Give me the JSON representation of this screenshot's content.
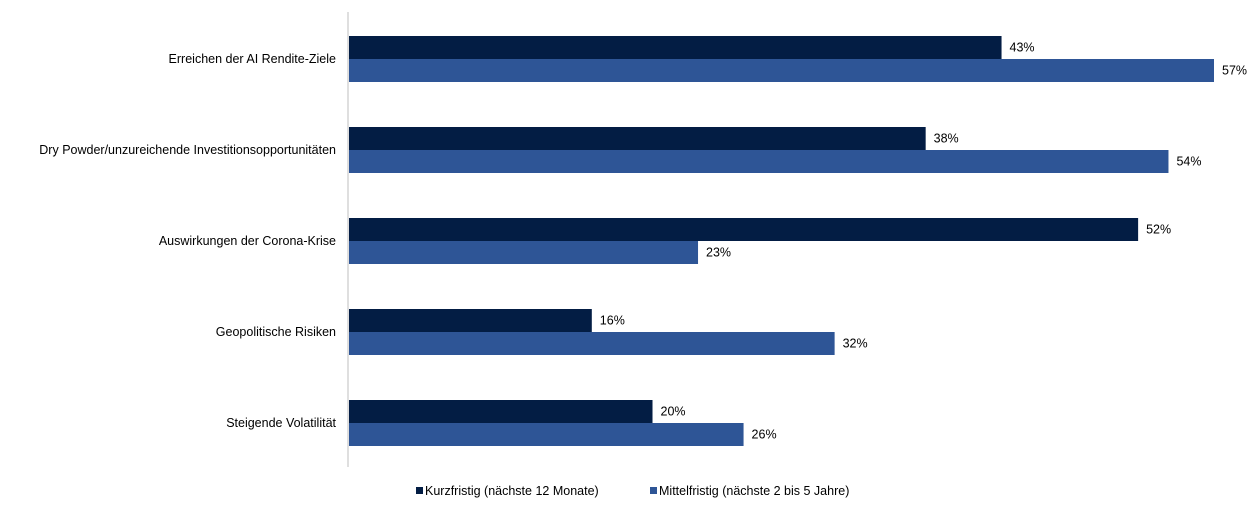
{
  "chart_data": {
    "type": "bar",
    "orientation": "horizontal",
    "categories": [
      "Erreichen der AI Rendite-Ziele",
      "Dry Powder/unzureichende Investitionsopportunitäten",
      "Auswirkungen der Corona-Krise",
      "Geopolitische Risiken",
      "Steigende Volatilität"
    ],
    "series": [
      {
        "name": "Kurzfristig (nächste 12 Monate)",
        "color": "#031d44",
        "values": [
          43,
          38,
          52,
          16,
          20
        ]
      },
      {
        "name": "Mittelfristig (nächste 2 bis 5 Jahre)",
        "color": "#2e5596",
        "values": [
          57,
          54,
          23,
          32,
          26
        ]
      }
    ],
    "value_suffix": "%",
    "xlim": [
      0,
      57
    ],
    "grid": false,
    "legend_position": "bottom"
  }
}
